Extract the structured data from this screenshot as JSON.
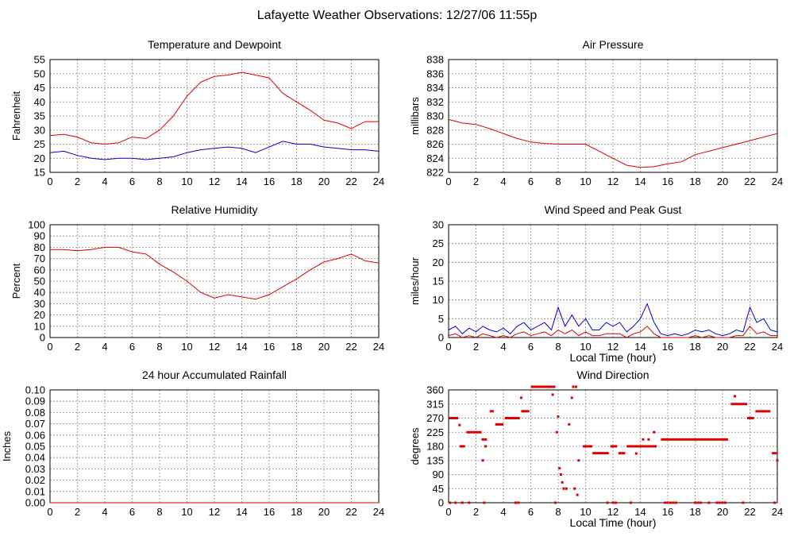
{
  "page_title": "Lafayette Weather Observations: 12/27/06 11:55p",
  "colors": {
    "red": "#dd0000",
    "blue": "#0000cc",
    "grid": "#888888",
    "axis": "#000000"
  },
  "chart_data": [
    {
      "id": "temperature-dewpoint",
      "type": "line",
      "title": "Temperature and Dewpoint",
      "xlabel": "",
      "ylabel": "Fahrenheit",
      "xlim": [
        0,
        24
      ],
      "ylim": [
        15,
        55
      ],
      "x_ticks": [
        0,
        2,
        4,
        6,
        8,
        10,
        12,
        14,
        16,
        18,
        20,
        22,
        24
      ],
      "y_ticks": [
        15,
        20,
        25,
        30,
        35,
        40,
        45,
        50,
        55
      ],
      "grid": true,
      "x": [
        0,
        1,
        2,
        3,
        4,
        5,
        6,
        7,
        8,
        9,
        10,
        11,
        12,
        13,
        14,
        15,
        16,
        17,
        18,
        19,
        20,
        21,
        22,
        23,
        24
      ],
      "series": [
        {
          "color": "#dd0000",
          "values": [
            28,
            28.5,
            27.5,
            25.5,
            25,
            25.5,
            27.5,
            27,
            30,
            35,
            42,
            47,
            49,
            49.5,
            50.5,
            49.5,
            48.5,
            43,
            40,
            37,
            33.5,
            32.5,
            30.5,
            33,
            33
          ]
        },
        {
          "color": "#0000cc",
          "values": [
            22,
            22.5,
            21,
            20,
            19.5,
            20,
            20,
            19.5,
            20,
            20.5,
            22,
            23,
            23.5,
            24,
            23.5,
            22,
            24,
            26,
            25,
            25,
            24,
            23.5,
            23,
            23,
            22.5
          ]
        }
      ]
    },
    {
      "id": "air-pressure",
      "type": "line",
      "title": "Air Pressure",
      "xlabel": "",
      "ylabel": "millibars",
      "xlim": [
        0,
        24
      ],
      "ylim": [
        822,
        838
      ],
      "x_ticks": [
        0,
        2,
        4,
        6,
        8,
        10,
        12,
        14,
        16,
        18,
        20,
        22,
        24
      ],
      "y_ticks": [
        822,
        824,
        826,
        828,
        830,
        832,
        834,
        836,
        838
      ],
      "grid": true,
      "x": [
        0,
        1,
        2,
        3,
        4,
        5,
        6,
        7,
        8,
        9,
        10,
        11,
        12,
        13,
        14,
        15,
        16,
        17,
        18,
        19,
        20,
        21,
        22,
        23,
        24
      ],
      "series": [
        {
          "color": "#dd0000",
          "values": [
            829.5,
            829,
            828.8,
            828.2,
            827.5,
            826.8,
            826.3,
            826.1,
            826,
            826,
            826,
            825,
            824,
            823,
            822.7,
            822.8,
            823.2,
            823.5,
            824.5,
            825,
            825.5,
            826,
            826.5,
            827,
            827.5
          ]
        }
      ]
    },
    {
      "id": "relative-humidity",
      "type": "line",
      "title": "Relative Humidity",
      "xlabel": "",
      "ylabel": "Percent",
      "xlim": [
        0,
        24
      ],
      "ylim": [
        0,
        100
      ],
      "x_ticks": [
        0,
        2,
        4,
        6,
        8,
        10,
        12,
        14,
        16,
        18,
        20,
        22,
        24
      ],
      "y_ticks": [
        0,
        10,
        20,
        30,
        40,
        50,
        60,
        70,
        80,
        90,
        100
      ],
      "grid": true,
      "x": [
        0,
        1,
        2,
        3,
        4,
        5,
        6,
        7,
        8,
        9,
        10,
        11,
        12,
        13,
        14,
        15,
        16,
        17,
        18,
        19,
        20,
        21,
        22,
        23,
        24
      ],
      "series": [
        {
          "color": "#dd0000",
          "values": [
            78,
            78,
            77,
            78,
            80,
            80,
            76,
            74,
            65,
            58,
            50,
            40,
            35,
            38,
            36,
            34,
            38,
            45,
            52,
            60,
            67,
            70,
            74,
            68,
            66
          ]
        }
      ]
    },
    {
      "id": "wind-speed-gust",
      "type": "line",
      "title": "Wind Speed and Peak Gust",
      "xlabel": "Local Time (hour)",
      "ylabel": "miles/hour",
      "xlim": [
        0,
        24
      ],
      "ylim": [
        0,
        30
      ],
      "x_ticks": [
        0,
        2,
        4,
        6,
        8,
        10,
        12,
        14,
        16,
        18,
        20,
        22,
        24
      ],
      "y_ticks": [
        0,
        5,
        10,
        15,
        20,
        25,
        30
      ],
      "grid": true,
      "x": [
        0,
        0.5,
        1,
        1.5,
        2,
        2.5,
        3,
        3.5,
        4,
        4.5,
        5,
        5.5,
        6,
        6.5,
        7,
        7.5,
        8,
        8.5,
        9,
        9.5,
        10,
        10.5,
        11,
        11.5,
        12,
        12.5,
        13,
        13.5,
        14,
        14.5,
        15,
        15.5,
        16,
        16.5,
        17,
        17.5,
        18,
        18.5,
        19,
        19.5,
        20,
        20.5,
        21,
        21.5,
        22,
        22.5,
        23,
        23.5,
        24
      ],
      "series": [
        {
          "color": "#0000cc",
          "values": [
            2,
            3,
            1,
            2.5,
            1.5,
            3,
            2,
            1.5,
            2.5,
            1,
            3,
            4,
            2,
            3,
            4,
            2,
            8,
            3,
            6,
            3,
            5,
            2,
            2,
            4,
            3,
            4,
            1.5,
            3,
            5,
            9,
            4,
            1,
            0.5,
            1,
            0.5,
            1,
            2,
            1.5,
            2,
            1,
            0.5,
            1,
            2,
            1.5,
            8,
            4,
            5,
            2,
            1.5
          ]
        },
        {
          "color": "#dd0000",
          "values": [
            0.5,
            1,
            0,
            0.5,
            0,
            1,
            0.5,
            0,
            0.5,
            0,
            1,
            1.5,
            0.5,
            1,
            1.5,
            0.5,
            2,
            1,
            2,
            0.5,
            1.5,
            0.5,
            0.5,
            1,
            1,
            1,
            0,
            1,
            1.5,
            3,
            1,
            0,
            0,
            0,
            0,
            0,
            0.5,
            0,
            0.5,
            0,
            0,
            0,
            0.5,
            0.5,
            3,
            1,
            1.5,
            0.5,
            0.5
          ]
        }
      ]
    },
    {
      "id": "accumulated-rainfall",
      "type": "line",
      "title": "24 hour Accumulated Rainfall",
      "xlabel": "",
      "ylabel": "Inches",
      "xlim": [
        0,
        24
      ],
      "ylim": [
        0,
        0.1
      ],
      "x_ticks": [
        0,
        2,
        4,
        6,
        8,
        10,
        12,
        14,
        16,
        18,
        20,
        22,
        24
      ],
      "y_ticks": [
        "0.00",
        "0.01",
        "0.02",
        "0.03",
        "0.04",
        "0.05",
        "0.06",
        "0.07",
        "0.08",
        "0.09",
        "0.10"
      ],
      "grid": true,
      "x": [
        0,
        24
      ],
      "series": [
        {
          "color": "#dd0000",
          "values": [
            0,
            0
          ]
        }
      ]
    },
    {
      "id": "wind-direction",
      "type": "scatter",
      "title": "Wind Direction",
      "xlabel": "Local Time (hour)",
      "ylabel": "degrees",
      "xlim": [
        0,
        24
      ],
      "ylim": [
        0,
        360
      ],
      "x_ticks": [
        0,
        2,
        4,
        6,
        8,
        10,
        12,
        14,
        16,
        18,
        20,
        22,
        24
      ],
      "y_ticks": [
        0,
        45,
        90,
        135,
        180,
        225,
        270,
        315,
        360
      ],
      "grid": true,
      "series": [
        {
          "color": "#dd0000",
          "segments": [
            [
              0,
              0.7,
              270
            ],
            [
              0.8,
              1.2,
              180
            ],
            [
              1.3,
              2.4,
              225
            ],
            [
              2.4,
              2.8,
              202
            ],
            [
              3,
              3.3,
              292
            ],
            [
              3.4,
              4,
              250
            ],
            [
              4.1,
              5.2,
              270
            ],
            [
              5.3,
              5.9,
              292
            ],
            [
              6,
              7.8,
              370
            ],
            [
              9.8,
              10.5,
              180
            ],
            [
              10.5,
              11.7,
              158
            ],
            [
              11.8,
              12.3,
              180
            ],
            [
              12.4,
              12.9,
              158
            ],
            [
              13,
              15.2,
              180
            ],
            [
              15.5,
              20.4,
              202
            ],
            [
              20.6,
              21.8,
              315
            ],
            [
              21.8,
              22.3,
              270
            ],
            [
              22.4,
              23.5,
              292
            ],
            [
              23.6,
              24,
              158
            ]
          ],
          "points": [
            [
              0.1,
              0
            ],
            [
              0.5,
              0
            ],
            [
              0.8,
              248
            ],
            [
              1,
              0
            ],
            [
              1.5,
              0
            ],
            [
              2.5,
              135
            ],
            [
              2.6,
              0
            ],
            [
              2.7,
              180
            ],
            [
              4.9,
              0
            ],
            [
              5.1,
              0
            ],
            [
              5.3,
              335
            ],
            [
              7.6,
              345
            ],
            [
              7.8,
              0
            ],
            [
              7.9,
              225
            ],
            [
              8,
              275
            ],
            [
              8.1,
              110
            ],
            [
              8.2,
              90
            ],
            [
              8.3,
              65
            ],
            [
              8.4,
              45
            ],
            [
              8.6,
              45
            ],
            [
              8.8,
              250
            ],
            [
              9,
              335
            ],
            [
              9.1,
              380
            ],
            [
              9.2,
              45
            ],
            [
              9.3,
              380
            ],
            [
              9.4,
              25
            ],
            [
              9.5,
              135
            ],
            [
              11.6,
              0
            ],
            [
              12,
              0
            ],
            [
              12.2,
              0
            ],
            [
              13.3,
              0
            ],
            [
              13.7,
              157
            ],
            [
              14.2,
              202
            ],
            [
              14.6,
              202
            ],
            [
              15,
              225
            ],
            [
              15.8,
              0
            ],
            [
              16,
              0
            ],
            [
              16.2,
              0
            ],
            [
              16.4,
              0
            ],
            [
              16.6,
              0
            ],
            [
              18,
              0
            ],
            [
              18.2,
              0
            ],
            [
              18.4,
              0
            ],
            [
              19,
              0
            ],
            [
              19.6,
              0
            ],
            [
              19.8,
              0
            ],
            [
              20,
              0
            ],
            [
              20.2,
              0
            ],
            [
              20.9,
              340
            ],
            [
              21.5,
              0
            ],
            [
              23.8,
              0
            ],
            [
              24,
              135
            ]
          ]
        }
      ]
    }
  ]
}
